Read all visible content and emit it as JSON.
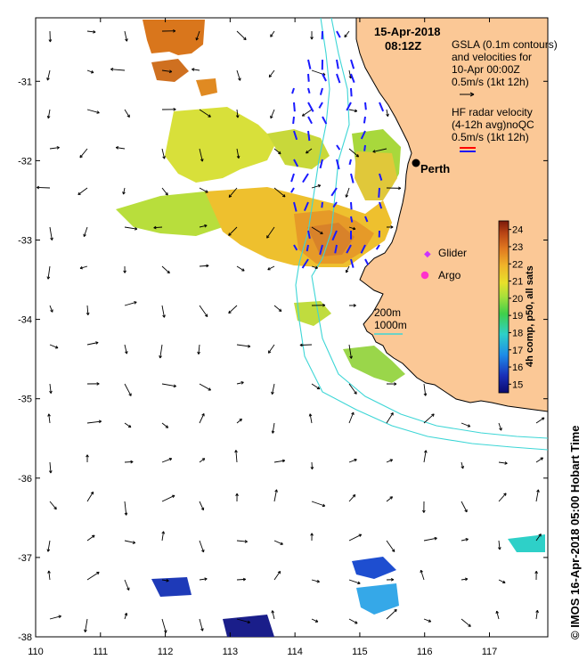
{
  "map": {
    "date_label": "15-Apr-2018",
    "time_label": "08:12Z",
    "gsla_legend": [
      "GSLA (0.1m contours)",
      "and velocities for",
      "10-Apr 00:00Z",
      "0.5m/s (1kt 12h)"
    ],
    "hf_legend": [
      "HF radar velocity",
      "(4-12h avg)noQC",
      "0.5m/s (1kt 12h)"
    ],
    "city_label": "Perth",
    "glider_label": "Glider",
    "argo_label": "Argo",
    "depth_200": "200m",
    "depth_1000": "1000m",
    "credit": "© IMOS 16-Apr-2018 05:00 Hobart Time",
    "colorbar_title": "4h comp, p50, all sats",
    "colorbar_ticks": [
      "15",
      "16",
      "17",
      "18",
      "19",
      "20",
      "21",
      "22",
      "23",
      "24"
    ],
    "colorbar_range": [
      14.5,
      24.5
    ],
    "colors": {
      "land": "#fbc896",
      "ocean": "#ffffff",
      "coast_line": "#000000",
      "isobath": "#3dd6d6",
      "gsla_vector": "#000000",
      "hf_vector_blue": "#1a1aff",
      "hf_vector_red": "#ff0000",
      "glider": "#cc33ff",
      "argo": "#ff33cc",
      "perth_marker": "#000000"
    },
    "x_ticks": [
      "110",
      "111",
      "112",
      "113",
      "114",
      "115",
      "116",
      "117"
    ],
    "y_ticks": [
      "-31",
      "-32",
      "-33",
      "-34",
      "-35",
      "-36",
      "-37",
      "-38"
    ],
    "lon_range": [
      110,
      117.9
    ],
    "lat_range": [
      -38,
      -30.2
    ]
  }
}
